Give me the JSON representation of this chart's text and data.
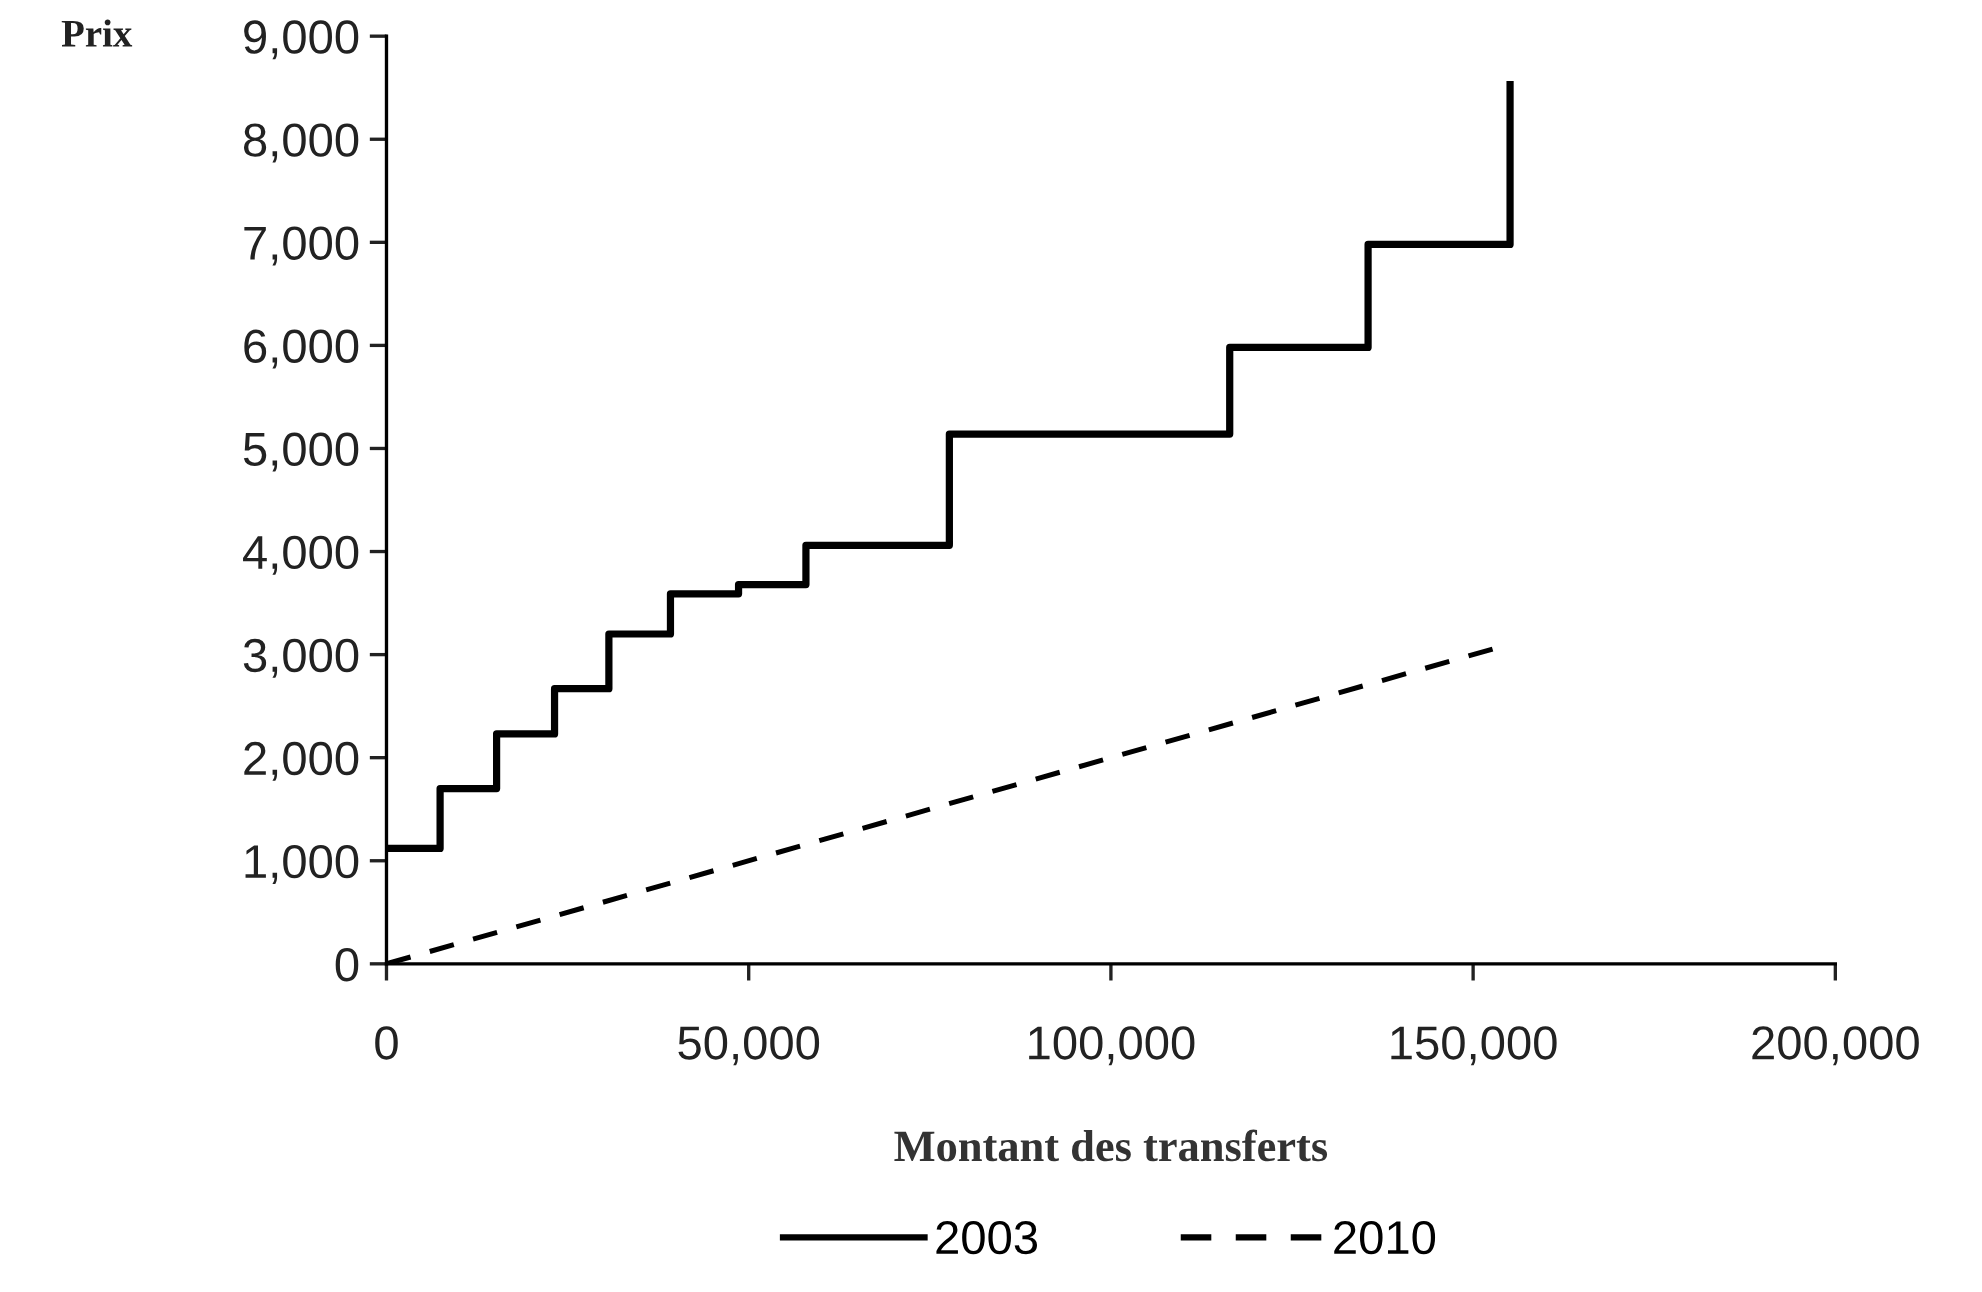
{
  "chart_data": {
    "type": "line",
    "xlabel": "Montant des transferts",
    "ylabel": "Prix",
    "xlim": [
      0,
      200000
    ],
    "xticks": [
      {
        "value": 0,
        "label": "0"
      },
      {
        "value": 50000,
        "label": "50,000"
      },
      {
        "value": 100000,
        "label": "100,000"
      },
      {
        "value": 150000,
        "label": "150,000"
      },
      {
        "value": 200000,
        "label": "200,000"
      }
    ],
    "ylim": [
      0,
      9000
    ],
    "yticks": [
      {
        "value": 0,
        "label": "0"
      },
      {
        "value": 1000,
        "label": "1,000"
      },
      {
        "value": 2000,
        "label": "2,000"
      },
      {
        "value": 3000,
        "label": "3,000"
      },
      {
        "value": 4000,
        "label": "4,000"
      },
      {
        "value": 5000,
        "label": "5,000"
      },
      {
        "value": 6000,
        "label": "6,000"
      },
      {
        "value": 7000,
        "label": "7,000"
      },
      {
        "value": 8000,
        "label": "8,000"
      },
      {
        "value": 9000,
        "label": "9,000"
      }
    ],
    "grid": false,
    "legend": "bottom",
    "series": [
      {
        "name": "2003",
        "type": "step",
        "color": "#000000",
        "line_style": "solid",
        "x": [
          0,
          7400,
          15200,
          23200,
          30700,
          39200,
          48600,
          57900,
          77700,
          116400,
          135500,
          155100
        ],
        "values": [
          1120,
          1700,
          2230,
          2670,
          3200,
          3590,
          3680,
          4060,
          5140,
          5980,
          6980,
          8530
        ]
      },
      {
        "name": "2010",
        "color": "#000000",
        "line_style": "dashed",
        "x": [
          0,
          153500
        ],
        "values": [
          0,
          3070
        ]
      }
    ]
  }
}
